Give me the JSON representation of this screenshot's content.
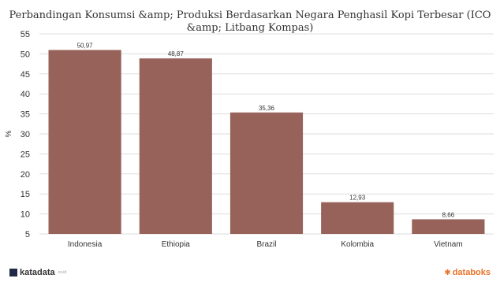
{
  "chart_data": {
    "type": "bar",
    "title": "Perbandingan Konsumsi &amp; Produksi Berdasarkan Negara Penghasil Kopi Terbesar (ICO &amp; Litbang Kompas)",
    "xlabel": "",
    "ylabel": "%",
    "categories": [
      "Indonesia",
      "Ethiopia",
      "Brazil",
      "Kolombia",
      "Vietnam"
    ],
    "values": [
      50.97,
      48.87,
      35.36,
      12.93,
      8.66
    ],
    "value_labels": [
      "50,97",
      "48,87",
      "35,36",
      "12,93",
      "8,66"
    ],
    "ylim": [
      5,
      55
    ],
    "yticks": [
      5,
      10,
      15,
      20,
      25,
      30,
      35,
      40,
      45,
      50,
      55
    ],
    "grid": true,
    "legend": "none",
    "bar_color": "#97625a"
  },
  "footer": {
    "left_brand": "katadata",
    "left_sub": "co.id",
    "right_brand": "databoks"
  }
}
